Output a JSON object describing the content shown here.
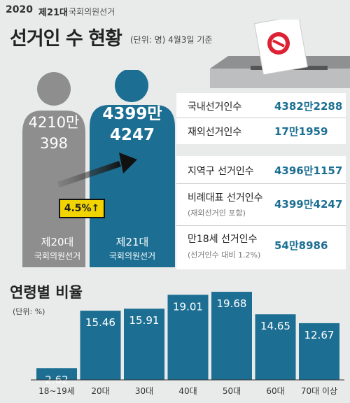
{
  "header": {
    "logo_year": "2020",
    "logo_generation": "제21대",
    "logo_label": "국회의원선거",
    "title": "선거인 수 현황",
    "subtitle": "(단위: 명) 4월3일 기준"
  },
  "figures": {
    "prev_value_line1": "4210만",
    "prev_value_line2": "398",
    "curr_value_line1": "4399만",
    "curr_value_line2": "4247",
    "change_label": "4.5%↑",
    "prev_label_line1": "제20대",
    "prev_label_line2": "국회의원선거",
    "curr_label_line1": "제21대",
    "curr_label_line2": "국회의원선거"
  },
  "panel1": [
    {
      "label": "국내선거인수",
      "value": "4382만2288"
    },
    {
      "label": "재외선거인수",
      "value": "17만1959"
    }
  ],
  "panel2": [
    {
      "label": "지역구 선거인수",
      "value": "4396만1157",
      "note": ""
    },
    {
      "label": "비례대표 선거인수",
      "value": "4399만4247",
      "note": "(재외선거인 포함)"
    },
    {
      "label": "만18세 선거인수",
      "value": "54만8986",
      "note": "(선거인수 대비 1.2%)"
    }
  ],
  "chart_data": {
    "type": "bar",
    "title": "연령별 비율",
    "unit_note": "(단위: %)",
    "categories": [
      "18~19세",
      "20대",
      "30대",
      "40대",
      "50대",
      "60대",
      "70대 이상"
    ],
    "values": [
      2.62,
      15.46,
      15.91,
      19.01,
      19.68,
      14.65,
      12.67
    ],
    "value_labels": [
      "2.62",
      "15.46",
      "15.91",
      "19.01",
      "19.68",
      "14.65",
      "12.67"
    ],
    "ylim": [
      0,
      20
    ],
    "grid": false,
    "bar_color": "#1c6f93"
  },
  "colors": {
    "current": "#1c6f93",
    "previous": "#8e8e8e",
    "badge": "#f2d400"
  }
}
